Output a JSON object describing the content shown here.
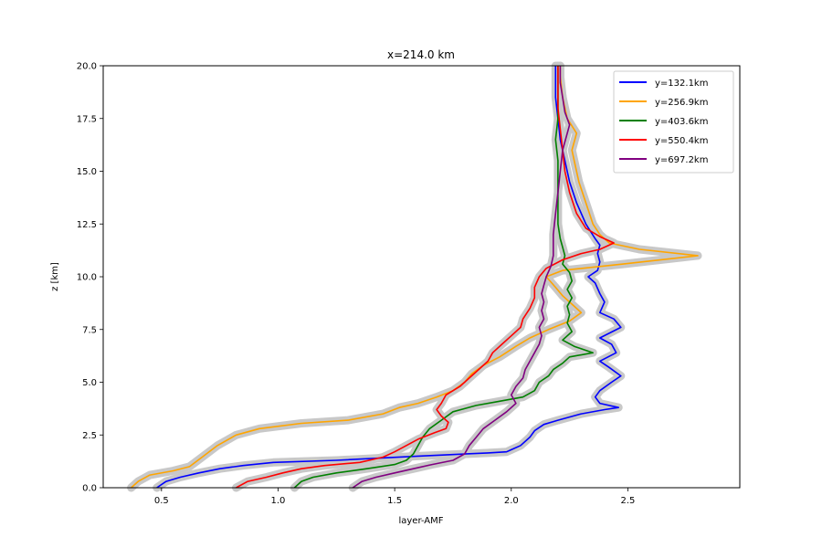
{
  "chart_data": {
    "type": "line",
    "title": "x=214.0 km",
    "xlabel": "layer-AMF",
    "ylabel": "z [km]",
    "xlim": [
      0.25,
      2.98
    ],
    "ylim": [
      0,
      20
    ],
    "xticks": [
      "0.5",
      "1.0",
      "1.5",
      "2.0",
      "2.5"
    ],
    "yticks": [
      "0.0",
      "2.5",
      "5.0",
      "7.5",
      "10.0",
      "12.5",
      "15.0",
      "17.5",
      "20.0"
    ],
    "grid": false,
    "legend": "top-right",
    "uncertainty_band_color": "#c8c8c8",
    "series": [
      {
        "name": "y=132.1km",
        "color": "#0000ff",
        "points": [
          [
            0.48,
            0
          ],
          [
            0.52,
            0.3
          ],
          [
            0.58,
            0.5
          ],
          [
            0.66,
            0.7
          ],
          [
            0.75,
            0.9
          ],
          [
            0.85,
            1.05
          ],
          [
            0.98,
            1.2
          ],
          [
            1.25,
            1.3
          ],
          [
            1.6,
            1.5
          ],
          [
            1.9,
            1.65
          ],
          [
            1.98,
            1.7
          ],
          [
            2.0,
            1.8
          ],
          [
            2.04,
            2.0
          ],
          [
            2.08,
            2.4
          ],
          [
            2.1,
            2.7
          ],
          [
            2.14,
            3.0
          ],
          [
            2.2,
            3.2
          ],
          [
            2.3,
            3.5
          ],
          [
            2.4,
            3.7
          ],
          [
            2.46,
            3.8
          ],
          [
            2.38,
            4.0
          ],
          [
            2.36,
            4.3
          ],
          [
            2.38,
            4.6
          ],
          [
            2.43,
            5.0
          ],
          [
            2.47,
            5.3
          ],
          [
            2.42,
            5.7
          ],
          [
            2.38,
            6.0
          ],
          [
            2.45,
            6.4
          ],
          [
            2.43,
            6.8
          ],
          [
            2.38,
            7.1
          ],
          [
            2.47,
            7.6
          ],
          [
            2.44,
            8.0
          ],
          [
            2.38,
            8.3
          ],
          [
            2.4,
            8.8
          ],
          [
            2.38,
            9.2
          ],
          [
            2.36,
            9.7
          ],
          [
            2.33,
            10.0
          ],
          [
            2.37,
            10.3
          ],
          [
            2.38,
            10.7
          ],
          [
            2.37,
            11.1
          ],
          [
            2.38,
            11.5
          ],
          [
            2.36,
            11.8
          ],
          [
            2.32,
            12.5
          ],
          [
            2.28,
            13.5
          ],
          [
            2.25,
            14.5
          ],
          [
            2.23,
            15.5
          ],
          [
            2.21,
            16.5
          ],
          [
            2.2,
            17.5
          ],
          [
            2.19,
            18.5
          ],
          [
            2.19,
            19.5
          ],
          [
            2.19,
            20
          ]
        ]
      },
      {
        "name": "y=256.9km",
        "color": "#ffa500",
        "points": [
          [
            0.37,
            0
          ],
          [
            0.4,
            0.3
          ],
          [
            0.45,
            0.6
          ],
          [
            0.55,
            0.8
          ],
          [
            0.62,
            1.0
          ],
          [
            0.68,
            1.5
          ],
          [
            0.74,
            2.0
          ],
          [
            0.82,
            2.5
          ],
          [
            0.92,
            2.8
          ],
          [
            1.1,
            3.05
          ],
          [
            1.3,
            3.2
          ],
          [
            1.45,
            3.5
          ],
          [
            1.52,
            3.8
          ],
          [
            1.6,
            4.0
          ],
          [
            1.68,
            4.3
          ],
          [
            1.75,
            4.6
          ],
          [
            1.8,
            5.0
          ],
          [
            1.83,
            5.4
          ],
          [
            1.88,
            5.8
          ],
          [
            1.95,
            6.2
          ],
          [
            2.02,
            6.7
          ],
          [
            2.08,
            7.1
          ],
          [
            2.16,
            7.5
          ],
          [
            2.25,
            7.9
          ],
          [
            2.3,
            8.3
          ],
          [
            2.26,
            8.7
          ],
          [
            2.22,
            9.1
          ],
          [
            2.19,
            9.5
          ],
          [
            2.15,
            10.0
          ],
          [
            2.22,
            10.3
          ],
          [
            2.48,
            10.6
          ],
          [
            2.8,
            11.0
          ],
          [
            2.55,
            11.3
          ],
          [
            2.42,
            11.6
          ],
          [
            2.38,
            12.0
          ],
          [
            2.35,
            12.5
          ],
          [
            2.32,
            13.5
          ],
          [
            2.29,
            14.5
          ],
          [
            2.27,
            15.5
          ],
          [
            2.26,
            16.0
          ],
          [
            2.28,
            16.8
          ],
          [
            2.24,
            17.5
          ],
          [
            2.22,
            18.5
          ],
          [
            2.21,
            19.5
          ],
          [
            2.21,
            20
          ]
        ]
      },
      {
        "name": "y=403.6km",
        "color": "#008000",
        "points": [
          [
            1.07,
            0
          ],
          [
            1.1,
            0.3
          ],
          [
            1.15,
            0.5
          ],
          [
            1.25,
            0.7
          ],
          [
            1.38,
            0.9
          ],
          [
            1.5,
            1.1
          ],
          [
            1.55,
            1.3
          ],
          [
            1.58,
            1.6
          ],
          [
            1.6,
            2.0
          ],
          [
            1.62,
            2.4
          ],
          [
            1.65,
            2.8
          ],
          [
            1.7,
            3.2
          ],
          [
            1.75,
            3.6
          ],
          [
            1.85,
            3.9
          ],
          [
            1.95,
            4.1
          ],
          [
            2.05,
            4.3
          ],
          [
            2.1,
            4.6
          ],
          [
            2.12,
            5.0
          ],
          [
            2.16,
            5.3
          ],
          [
            2.18,
            5.6
          ],
          [
            2.22,
            5.9
          ],
          [
            2.25,
            6.2
          ],
          [
            2.35,
            6.4
          ],
          [
            2.27,
            6.7
          ],
          [
            2.22,
            7.0
          ],
          [
            2.26,
            7.4
          ],
          [
            2.24,
            7.8
          ],
          [
            2.25,
            8.2
          ],
          [
            2.24,
            8.6
          ],
          [
            2.26,
            9.0
          ],
          [
            2.24,
            9.4
          ],
          [
            2.26,
            9.8
          ],
          [
            2.25,
            10.2
          ],
          [
            2.22,
            10.6
          ],
          [
            2.23,
            11.0
          ],
          [
            2.22,
            11.4
          ],
          [
            2.21,
            11.8
          ],
          [
            2.2,
            12.5
          ],
          [
            2.2,
            13.5
          ],
          [
            2.2,
            14.5
          ],
          [
            2.2,
            15.5
          ],
          [
            2.19,
            16.5
          ],
          [
            2.2,
            17.5
          ],
          [
            2.2,
            18.5
          ],
          [
            2.2,
            19.5
          ],
          [
            2.2,
            20
          ]
        ]
      },
      {
        "name": "y=550.4km",
        "color": "#ff0000",
        "points": [
          [
            0.82,
            0
          ],
          [
            0.87,
            0.3
          ],
          [
            0.95,
            0.5
          ],
          [
            1.02,
            0.7
          ],
          [
            1.1,
            0.9
          ],
          [
            1.2,
            1.05
          ],
          [
            1.35,
            1.2
          ],
          [
            1.45,
            1.45
          ],
          [
            1.5,
            1.7
          ],
          [
            1.55,
            2.0
          ],
          [
            1.6,
            2.3
          ],
          [
            1.67,
            2.6
          ],
          [
            1.72,
            2.8
          ],
          [
            1.73,
            3.1
          ],
          [
            1.7,
            3.4
          ],
          [
            1.68,
            3.7
          ],
          [
            1.7,
            4.0
          ],
          [
            1.72,
            4.4
          ],
          [
            1.78,
            4.8
          ],
          [
            1.82,
            5.2
          ],
          [
            1.86,
            5.6
          ],
          [
            1.9,
            6.0
          ],
          [
            1.92,
            6.4
          ],
          [
            1.96,
            6.8
          ],
          [
            2.0,
            7.2
          ],
          [
            2.04,
            7.6
          ],
          [
            2.05,
            8.0
          ],
          [
            2.08,
            8.5
          ],
          [
            2.1,
            9.0
          ],
          [
            2.1,
            9.5
          ],
          [
            2.12,
            10.0
          ],
          [
            2.15,
            10.4
          ],
          [
            2.22,
            10.8
          ],
          [
            2.3,
            11.1
          ],
          [
            2.38,
            11.3
          ],
          [
            2.44,
            11.6
          ],
          [
            2.38,
            11.9
          ],
          [
            2.32,
            12.3
          ],
          [
            2.28,
            13.0
          ],
          [
            2.25,
            14.0
          ],
          [
            2.23,
            15.0
          ],
          [
            2.22,
            16.0
          ],
          [
            2.21,
            17.0
          ],
          [
            2.2,
            18.0
          ],
          [
            2.2,
            19.0
          ],
          [
            2.2,
            20
          ]
        ]
      },
      {
        "name": "y=697.2km",
        "color": "#800080",
        "points": [
          [
            1.32,
            0
          ],
          [
            1.36,
            0.3
          ],
          [
            1.42,
            0.5
          ],
          [
            1.5,
            0.7
          ],
          [
            1.58,
            0.9
          ],
          [
            1.66,
            1.1
          ],
          [
            1.75,
            1.3
          ],
          [
            1.8,
            1.6
          ],
          [
            1.82,
            2.0
          ],
          [
            1.85,
            2.4
          ],
          [
            1.88,
            2.8
          ],
          [
            1.93,
            3.2
          ],
          [
            1.98,
            3.6
          ],
          [
            2.02,
            4.0
          ],
          [
            2.0,
            4.4
          ],
          [
            2.02,
            4.8
          ],
          [
            2.05,
            5.2
          ],
          [
            2.06,
            5.6
          ],
          [
            2.08,
            6.0
          ],
          [
            2.1,
            6.4
          ],
          [
            2.12,
            6.8
          ],
          [
            2.13,
            7.2
          ],
          [
            2.12,
            7.6
          ],
          [
            2.14,
            8.0
          ],
          [
            2.13,
            8.4
          ],
          [
            2.14,
            8.8
          ],
          [
            2.13,
            9.2
          ],
          [
            2.14,
            9.6
          ],
          [
            2.15,
            10.0
          ],
          [
            2.17,
            10.5
          ],
          [
            2.18,
            11.0
          ],
          [
            2.18,
            11.5
          ],
          [
            2.18,
            12.0
          ],
          [
            2.19,
            13.0
          ],
          [
            2.2,
            14.0
          ],
          [
            2.21,
            15.0
          ],
          [
            2.22,
            16.0
          ],
          [
            2.24,
            16.8
          ],
          [
            2.25,
            17.2
          ],
          [
            2.23,
            17.8
          ],
          [
            2.22,
            18.5
          ],
          [
            2.21,
            19.2
          ],
          [
            2.21,
            20
          ]
        ]
      }
    ]
  }
}
